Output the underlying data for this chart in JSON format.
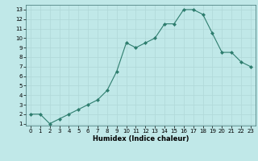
{
  "x": [
    0,
    1,
    2,
    3,
    4,
    5,
    6,
    7,
    8,
    9,
    10,
    11,
    12,
    13,
    14,
    15,
    16,
    17,
    18,
    19,
    20,
    21,
    22,
    23
  ],
  "y": [
    2,
    2,
    1,
    1.5,
    2,
    2.5,
    3,
    3.5,
    4.5,
    6.5,
    9.5,
    9,
    9.5,
    10,
    11.5,
    11.5,
    13,
    13,
    12.5,
    10.5,
    8.5,
    8.5,
    7.5,
    7
  ],
  "line_color": "#2e7d6e",
  "marker": "D",
  "marker_size": 2,
  "bg_color": "#c0e8e8",
  "grid_color": "#b0d8d8",
  "xlabel": "Humidex (Indice chaleur)",
  "xlim_min": -0.5,
  "xlim_max": 23.5,
  "ylim_min": 0.8,
  "ylim_max": 13.5,
  "xticks": [
    0,
    1,
    2,
    3,
    4,
    5,
    6,
    7,
    8,
    9,
    10,
    11,
    12,
    13,
    14,
    15,
    16,
    17,
    18,
    19,
    20,
    21,
    22,
    23
  ],
  "yticks": [
    1,
    2,
    3,
    4,
    5,
    6,
    7,
    8,
    9,
    10,
    11,
    12,
    13
  ],
  "tick_fontsize": 5,
  "xlabel_fontsize": 6,
  "xlabel_fontweight": "bold"
}
